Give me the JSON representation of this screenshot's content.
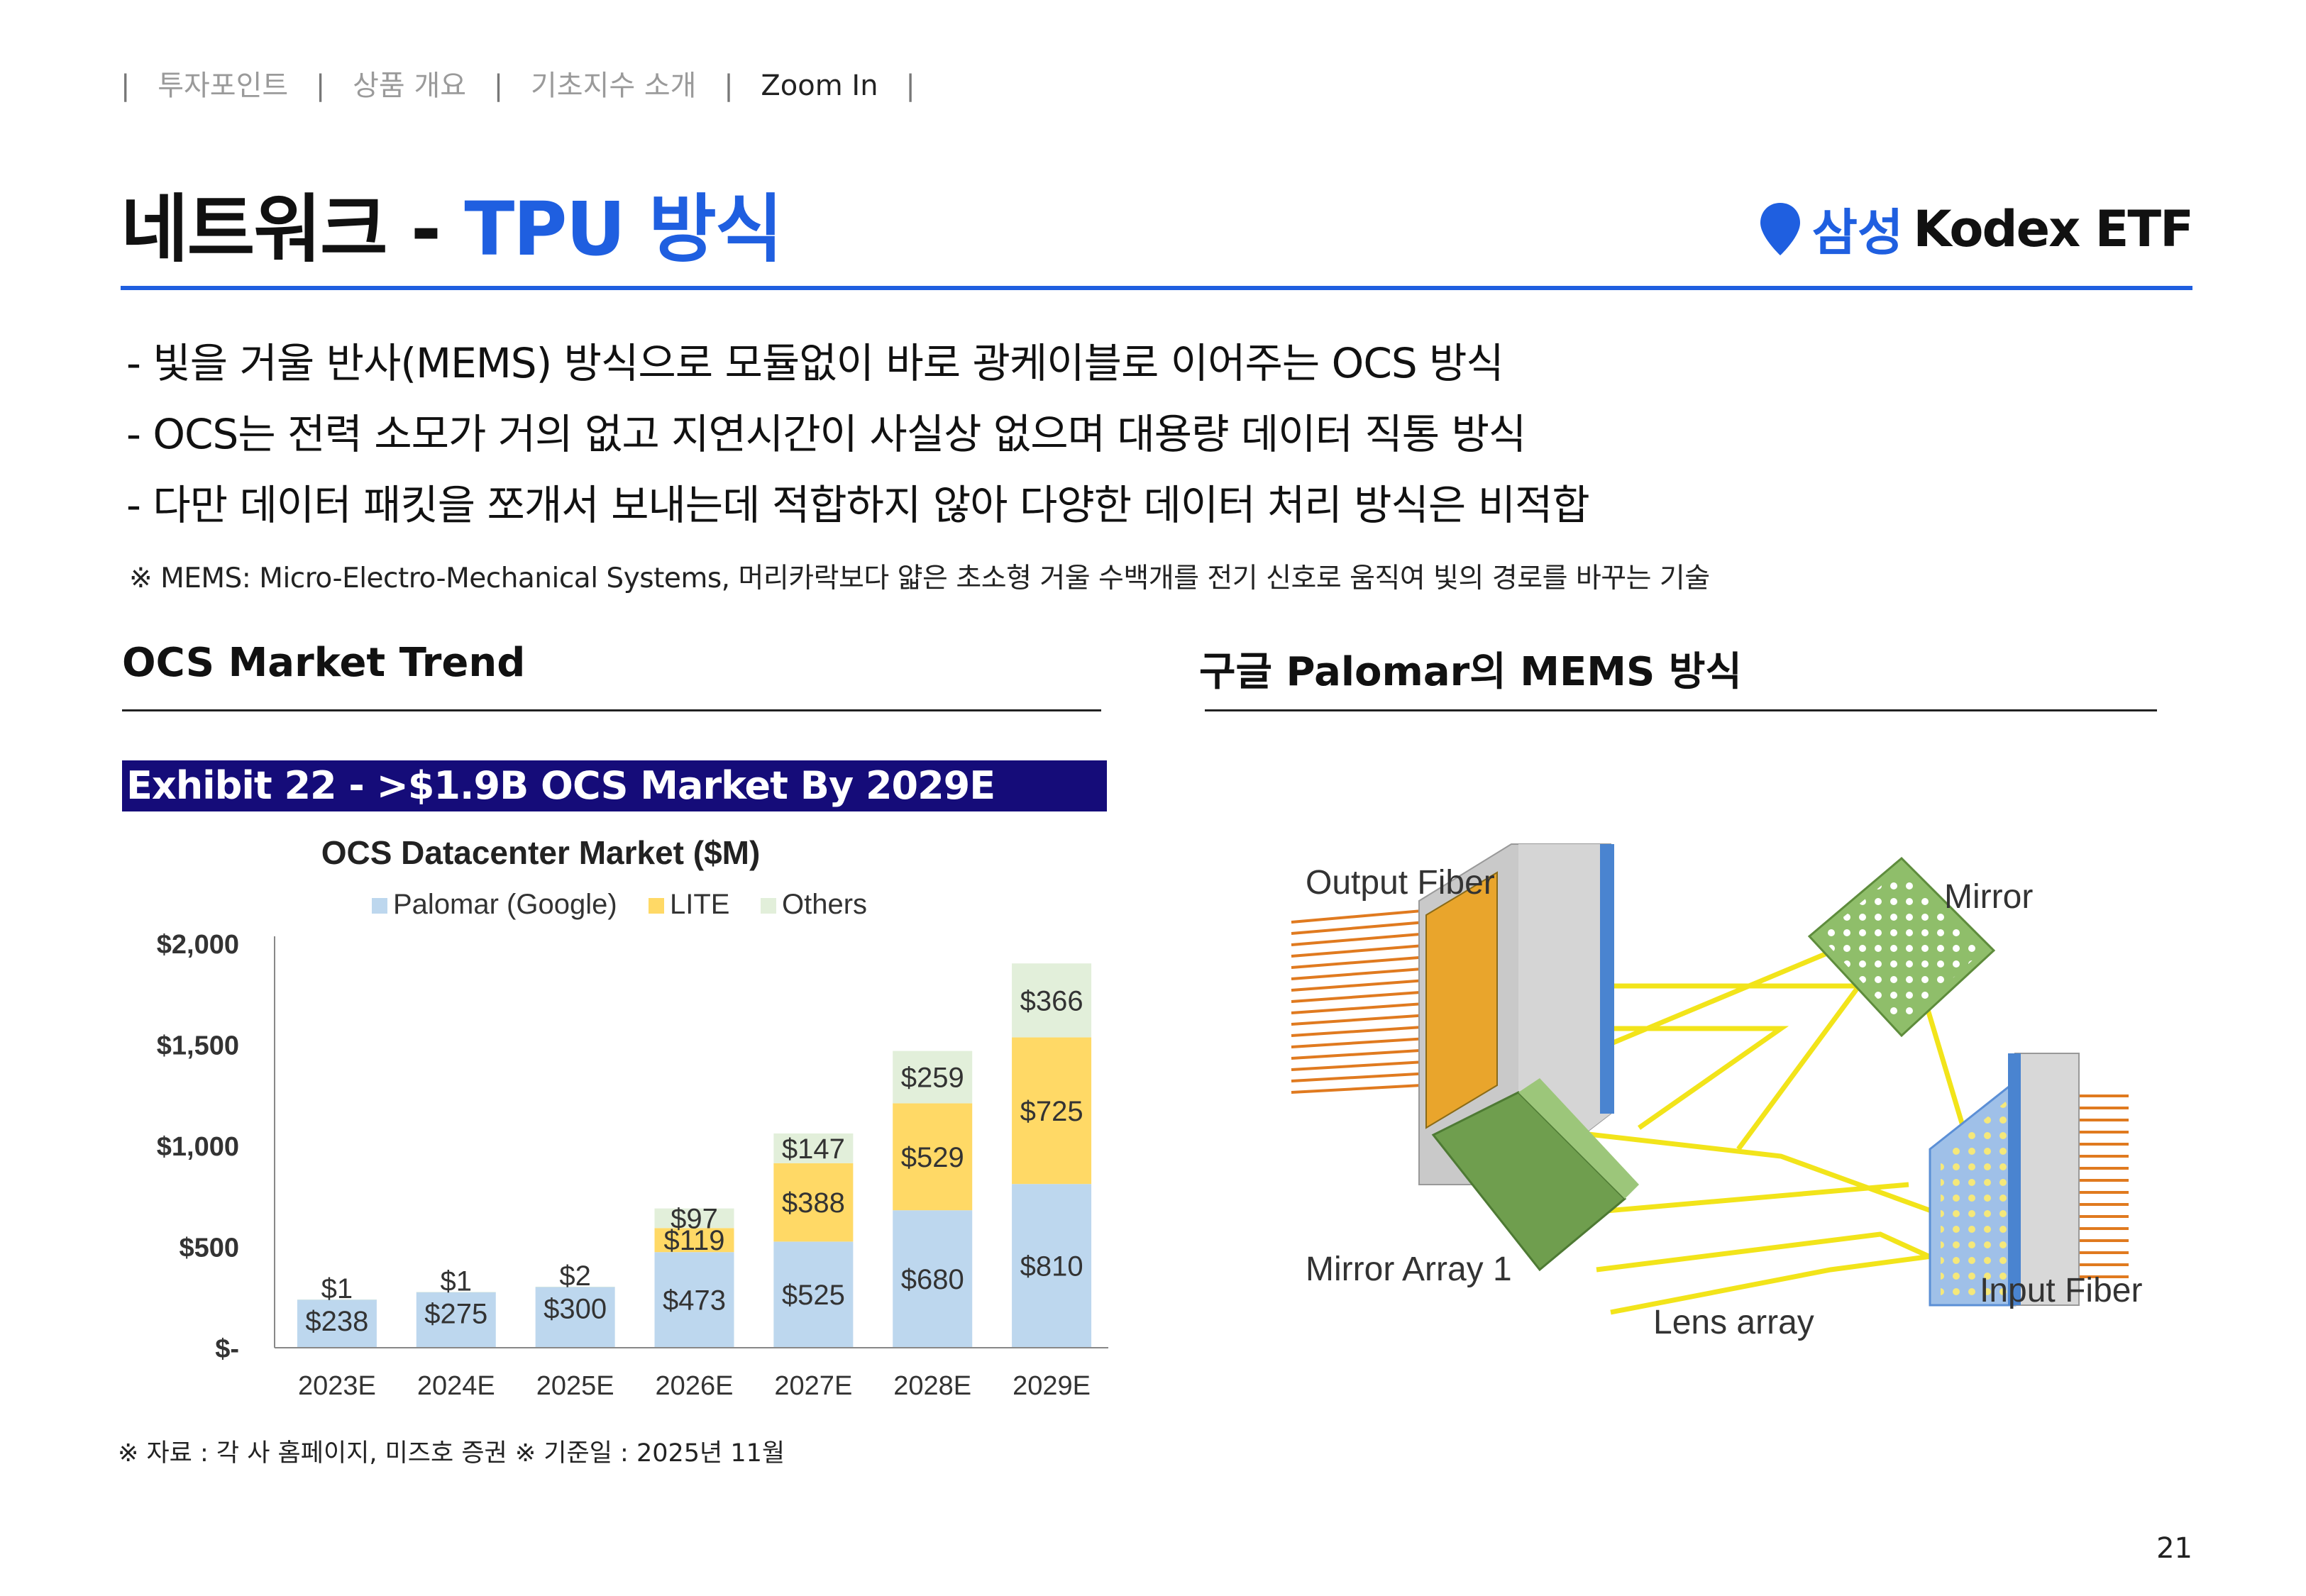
{
  "breadcrumb": [
    "투자포인트",
    "상품 개요",
    "기초지수 소개",
    "Zoom In"
  ],
  "title": {
    "main": "네트워크 -",
    "accent": "TPU 방식"
  },
  "brand": {
    "korean": "삼성",
    "name": "Kodex ETF"
  },
  "bullets": [
    "- 빛을 거울 반사(MEMS) 방식으로 모듈없이 바로 광케이블로 이어주는 OCS 방식",
    "- OCS는 전력 소모가 거의 없고 지연시간이 사실상 없으며 대용량 데이터 직통 방식",
    "- 다만 데이터 패킷을 쪼개서 보내는데 적합하지 않아 다양한 데이터 처리 방식은 비적합"
  ],
  "footnote": "※ MEMS: Micro-Electro-Mechanical Systems, 머리카락보다 얇은 초소형 거울 수백개를 전기 신호로 움직여 빛의 경로를 바꾸는 기술",
  "left_section_title": "OCS Market Trend",
  "right_section_title": "구글 Palomar의 MEMS 방식",
  "exhibit_title": "Exhibit 22 - >$1.9B OCS Market By 2029E",
  "chart_data": {
    "type": "bar",
    "stacked": true,
    "title": "OCS Datacenter Market ($M)",
    "categories": [
      "2023E",
      "2024E",
      "2025E",
      "2026E",
      "2027E",
      "2028E",
      "2029E"
    ],
    "series": [
      {
        "name": "Palomar (Google)",
        "color": "#bdd7ee",
        "values": [
          238,
          275,
          300,
          473,
          525,
          680,
          810
        ],
        "labels": [
          "$238",
          "$275",
          "$300",
          "$473",
          "$525",
          "$680",
          "$810"
        ]
      },
      {
        "name": "LITE",
        "color": "#ffd966",
        "values": [
          0,
          0,
          0,
          119,
          388,
          529,
          725
        ],
        "labels": [
          "",
          "",
          "",
          "$119",
          "$388",
          "$529",
          "$725"
        ]
      },
      {
        "name": "Others",
        "color": "#e2efda",
        "values": [
          1,
          1,
          2,
          97,
          147,
          259,
          366
        ],
        "labels": [
          "$1",
          "$1",
          "$2",
          "$97",
          "$147",
          "$259",
          "$366"
        ]
      }
    ],
    "yticks": [
      0,
      500,
      1000,
      1500,
      2000
    ],
    "ytick_labels": [
      "$-",
      "$500",
      "$1,000",
      "$1,500",
      "$2,000"
    ],
    "ylim": [
      0,
      2000
    ],
    "legend_position": "top",
    "grid": false
  },
  "diagram": {
    "labels": {
      "output_fiber": "Output Fiber",
      "mirror": "Mirror",
      "mirror_array": "Mirror Array 1",
      "lens_array": "Lens array",
      "input_fiber": "Input Fiber"
    },
    "colors": {
      "fiber": "#e07a1f",
      "beam": "#f2e41a",
      "mirror": "#8fbe6a",
      "lens": "#5b8fd6"
    }
  },
  "source_note": "※ 자료 : 각 사 홈페이지, 미즈호 증권 ※ 기준일 : 2025년 11월",
  "page_number": "21"
}
